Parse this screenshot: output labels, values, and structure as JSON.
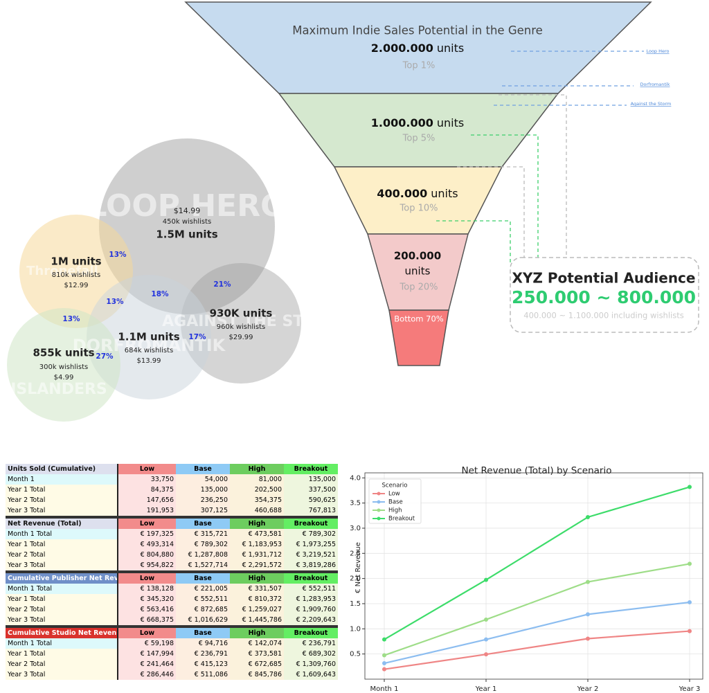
{
  "funnel": {
    "levels": [
      {
        "title": "Maximum Indie Sales Potential in the Genre",
        "value": "2.000.000",
        "unit": "units",
        "note": "Top 1%"
      },
      {
        "value": "1.000.000",
        "unit": "units",
        "note": "Top 5%"
      },
      {
        "value": "400.000",
        "unit": "units",
        "note": "Top 10%"
      },
      {
        "value": "200.000",
        "unit": "units",
        "note": "Top 20%"
      },
      {
        "note": "Bottom 70%"
      }
    ],
    "references": [
      "Loop Hero",
      "Dorfromantik",
      "Against the Storm"
    ],
    "callout": {
      "title": "XYZ Potential Audience",
      "range": "250.000 ~ 800.000",
      "note": "400.000 ~ 1.100.000 including wishlists"
    }
  },
  "bubbles": [
    {
      "logo": "LOOP HERO",
      "units": "1.5M units",
      "wishlists": "450k wishlists",
      "price": "$14.99"
    },
    {
      "logo": "Thronefall",
      "units": "1M units",
      "wishlists": "810k wishlists",
      "price": "$12.99"
    },
    {
      "logo": "AGAINST THE STORM",
      "units": "930K units",
      "wishlists": "960k wishlists",
      "price": "$29.99"
    },
    {
      "logo": "DORFROMANTIK",
      "units": "1.1M units",
      "wishlists": "684k wishlists",
      "price": "$13.99"
    },
    {
      "logo": "ISLANDERS",
      "units": "855k units",
      "wishlists": "300k wishlists",
      "price": "$4.99"
    }
  ],
  "overlaps": [
    "13%",
    "13%",
    "13%",
    "18%",
    "21%",
    "17%",
    "27%"
  ],
  "tables": [
    {
      "title": "Units Sold (Cumulative)",
      "columns": [
        "Low",
        "Base",
        "High",
        "Breakout"
      ],
      "rows": [
        [
          "Month 1",
          "33,750",
          "54,000",
          "81,000",
          "135,000"
        ],
        [
          "Year 1 Total",
          "84,375",
          "135,000",
          "202,500",
          "337,500"
        ],
        [
          "Year 2 Total",
          "147,656",
          "236,250",
          "354,375",
          "590,625"
        ],
        [
          "Year 3 Total",
          "191,953",
          "307,125",
          "460,688",
          "767,813"
        ]
      ]
    },
    {
      "title": "Net Revenue (Total)",
      "columns": [
        "Low",
        "Base",
        "High",
        "Breakout"
      ],
      "rows": [
        [
          "Month 1 Total",
          "€ 197,325",
          "€ 315,721",
          "€ 473,581",
          "€ 789,302"
        ],
        [
          "Year 1 Total",
          "€ 493,314",
          "€ 789,302",
          "€ 1,183,953",
          "€ 1,973,255"
        ],
        [
          "Year 2 Total",
          "€ 804,880",
          "€ 1,287,808",
          "€ 1,931,712",
          "€ 3,219,521"
        ],
        [
          "Year 3 Total",
          "€ 954,822",
          "€ 1,527,714",
          "€ 2,291,572",
          "€ 3,819,286"
        ]
      ]
    },
    {
      "title": "Cumulative Publisher Net Revenue",
      "columns": [
        "Low",
        "Base",
        "High",
        "Breakout"
      ],
      "rows": [
        [
          "Month 1 Total",
          "€ 138,128",
          "€ 221,005",
          "€ 331,507",
          "€ 552,511"
        ],
        [
          "Year 1 Total",
          "€ 345,320",
          "€ 552,511",
          "€ 810,372",
          "€ 1,283,953"
        ],
        [
          "Year 2 Total",
          "€ 563,416",
          "€ 872,685",
          "€ 1,259,027",
          "€ 1,909,760"
        ],
        [
          "Year 3 Total",
          "€ 668,375",
          "€ 1,016,629",
          "€ 1,445,786",
          "€ 2,209,643"
        ]
      ]
    },
    {
      "title": "Cumulative Studio Net Revenue",
      "columns": [
        "Low",
        "Base",
        "High",
        "Breakout"
      ],
      "rows": [
        [
          "Month 1 Total",
          "€ 59,198",
          "€ 94,716",
          "€ 142,074",
          "€ 236,791"
        ],
        [
          "Year 1 Total",
          "€ 147,994",
          "€ 236,791",
          "€ 373,581",
          "€ 689,302"
        ],
        [
          "Year 2 Total",
          "€ 241,464",
          "€ 415,123",
          "€ 672,685",
          "€ 1,309,760"
        ],
        [
          "Year 3 Total",
          "€ 286,446",
          "€ 511,086",
          "€ 845,786",
          "€ 1,609,643"
        ]
      ]
    }
  ],
  "chart_data": {
    "type": "line",
    "title": "Net Revenue (Total) by Scenario",
    "y_label": "€ Net Revenue",
    "categories": [
      "Month 1",
      "Year 1",
      "Year 2",
      "Year 3"
    ],
    "legend_title": "Scenario",
    "legend": "upper left",
    "grid": true,
    "series": [
      {
        "name": "Low",
        "color": "#ef8585",
        "values": [
          0.197,
          0.493,
          0.805,
          0.955
        ]
      },
      {
        "name": "Base",
        "color": "#8cbdf0",
        "values": [
          0.316,
          0.789,
          1.288,
          1.528
        ]
      },
      {
        "name": "High",
        "color": "#9edd88",
        "values": [
          0.474,
          1.184,
          1.932,
          2.292
        ]
      },
      {
        "name": "Breakout",
        "color": "#3ddc6a",
        "values": [
          0.789,
          1.973,
          3.22,
          3.819
        ]
      }
    ],
    "ylim": [
      0,
      4.1
    ],
    "yticks": [
      0.5,
      {
        "value": 1,
        "label": "1.0"
      },
      1.5,
      {
        "value": 2,
        "label": "2.0"
      },
      2.5,
      {
        "value": 3,
        "label": "3.0"
      },
      3.5,
      {
        "value": 4,
        "label": "4.0"
      }
    ]
  }
}
